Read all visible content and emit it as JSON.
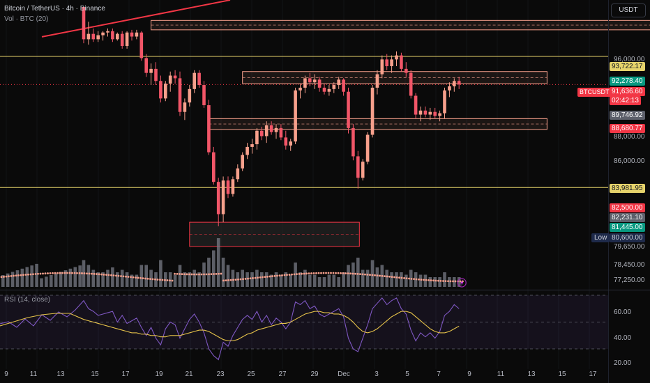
{
  "header": {
    "title": "Bitcoin / TetherUS · 4h · Binance",
    "volume_label": "Vol · BTC (20)",
    "rsi_label": "RSI (14, close)"
  },
  "currency_button": "USDT",
  "symbol_tag": "BTCUSDT",
  "price_axis": [
    "96,000.00",
    "88,000.00",
    "86,000.00",
    "79,650.00",
    "78,450.00",
    "77,250.00"
  ],
  "price_labels": {
    "top_line": "93,722.17",
    "zone_top": "92,278.40",
    "current": "91,636.60",
    "countdown": "02:42:13",
    "gray1": "89,746.92",
    "zone_bottom": "88,680.77",
    "lower_line": "83,981.95",
    "red_zone": "82,500.00",
    "gray2": "82,231.10",
    "green_zone": "81,445.00",
    "low_label": "Low",
    "low_value": "80,600.00"
  },
  "rsi_axis": [
    "60.00",
    "40.00",
    "20.00"
  ],
  "time_axis": [
    "9",
    "11",
    "13",
    "15",
    "17",
    "19",
    "21",
    "23",
    "25",
    "27",
    "29",
    "Dec",
    "3",
    "5",
    "7",
    "9",
    "11",
    "13",
    "15",
    "17"
  ],
  "colors": {
    "up": "#f7a08c",
    "down": "#f25668",
    "hline": "#e6d36b",
    "zone": "#f7a08c",
    "red_zone": "#f23645",
    "volume": "#787b86",
    "vol_ma": "#f7a08c",
    "rsi": "#7e57c2",
    "rsi_ma": "#e6c34a"
  },
  "chart_data": {
    "type": "candlestick",
    "ylim": [
      76800,
      97400
    ],
    "candles": [
      [
        97400,
        97400,
        94700,
        95000
      ],
      [
        95000,
        96300,
        94600,
        95400
      ],
      [
        95400,
        95800,
        94800,
        95000
      ],
      [
        95000,
        95600,
        94800,
        95300
      ],
      [
        95300,
        95600,
        94900,
        95500
      ],
      [
        95500,
        95800,
        95200,
        95600
      ],
      [
        95600,
        95800,
        94800,
        95000
      ],
      [
        95000,
        95500,
        94900,
        95400
      ],
      [
        95400,
        95600,
        94300,
        94500
      ],
      [
        94500,
        95600,
        94300,
        95500
      ],
      [
        95500,
        95700,
        94900,
        95200
      ],
      [
        95200,
        95700,
        95000,
        95500
      ],
      [
        95500,
        95600,
        93400,
        93600
      ],
      [
        93600,
        93900,
        92200,
        92500
      ],
      [
        92500,
        93200,
        91600,
        92800
      ],
      [
        92800,
        93300,
        91600,
        91900
      ],
      [
        91900,
        92300,
        90300,
        90600
      ],
      [
        90600,
        91900,
        90400,
        91700
      ],
      [
        91700,
        92600,
        91100,
        92300
      ],
      [
        92300,
        92700,
        91700,
        92100
      ],
      [
        92100,
        92600,
        89300,
        89600
      ],
      [
        89600,
        90600,
        89000,
        90300
      ],
      [
        90300,
        91600,
        90000,
        91300
      ],
      [
        91300,
        92700,
        91000,
        92500
      ],
      [
        92500,
        92700,
        91400,
        91600
      ],
      [
        91600,
        91900,
        89900,
        90100
      ],
      [
        90100,
        90500,
        86400,
        86600
      ],
      [
        86600,
        87000,
        84200,
        84400
      ],
      [
        84400,
        84700,
        81100,
        82000
      ],
      [
        82000,
        84800,
        81400,
        84500
      ],
      [
        84500,
        84800,
        83200,
        83500
      ],
      [
        83500,
        84800,
        83300,
        84600
      ],
      [
        84600,
        85700,
        84400,
        85400
      ],
      [
        85400,
        86600,
        85200,
        86400
      ],
      [
        86400,
        87300,
        86100,
        87000
      ],
      [
        87000,
        87600,
        86500,
        87200
      ],
      [
        87200,
        88400,
        86800,
        88200
      ],
      [
        88200,
        88500,
        87500,
        87800
      ],
      [
        87800,
        88900,
        87300,
        88600
      ],
      [
        88600,
        88900,
        87900,
        88100
      ],
      [
        88100,
        88700,
        87600,
        88400
      ],
      [
        88400,
        88700,
        87500,
        87700
      ],
      [
        87700,
        88200,
        86800,
        87100
      ],
      [
        87100,
        87600,
        86700,
        87400
      ],
      [
        87400,
        91400,
        87200,
        91200
      ],
      [
        91200,
        91700,
        90600,
        91400
      ],
      [
        91400,
        92300,
        91000,
        92100
      ],
      [
        92100,
        92500,
        91500,
        91800
      ],
      [
        91800,
        92400,
        91300,
        92000
      ],
      [
        92000,
        92200,
        91100,
        91400
      ],
      [
        91400,
        91700,
        90900,
        91100
      ],
      [
        91100,
        91600,
        90800,
        91300
      ],
      [
        91300,
        91800,
        91000,
        91600
      ],
      [
        91600,
        92200,
        91300,
        92000
      ],
      [
        92000,
        92100,
        90800,
        91100
      ],
      [
        91100,
        91400,
        88000,
        88400
      ],
      [
        88400,
        88700,
        86000,
        86300
      ],
      [
        86300,
        86700,
        83900,
        84700
      ],
      [
        84700,
        86100,
        84500,
        85900
      ],
      [
        85900,
        88100,
        85700,
        87900
      ],
      [
        87900,
        91600,
        87700,
        91400
      ],
      [
        91400,
        92700,
        90900,
        92400
      ],
      [
        92400,
        93800,
        92100,
        93500
      ],
      [
        93500,
        93900,
        92700,
        93000
      ],
      [
        93000,
        93800,
        92500,
        93500
      ],
      [
        93500,
        94100,
        93000,
        93800
      ],
      [
        93800,
        94000,
        92600,
        92800
      ],
      [
        92800,
        93300,
        92200,
        92500
      ],
      [
        92500,
        92700,
        90600,
        90800
      ],
      [
        90800,
        91000,
        89100,
        89400
      ],
      [
        89400,
        90000,
        88900,
        89700
      ],
      [
        89700,
        90000,
        89200,
        89400
      ],
      [
        89400,
        89900,
        89000,
        89600
      ],
      [
        89600,
        89900,
        89100,
        89300
      ],
      [
        89300,
        89700,
        88900,
        89500
      ],
      [
        89500,
        91400,
        89100,
        91200
      ],
      [
        91200,
        91800,
        90700,
        91500
      ],
      [
        91500,
        92100,
        91100,
        91900
      ],
      [
        91900,
        92200,
        91300,
        91636.6
      ]
    ],
    "volume_relative": [
      0.55,
      0.45,
      0.35,
      0.3,
      0.3,
      0.35,
      0.4,
      0.3,
      0.35,
      0.3,
      0.25,
      0.25,
      0.45,
      0.45,
      0.35,
      0.3,
      0.55,
      0.3,
      0.3,
      0.25,
      0.45,
      0.3,
      0.3,
      0.35,
      0.3,
      0.5,
      0.6,
      0.75,
      1.0,
      0.6,
      0.45,
      0.35,
      0.3,
      0.35,
      0.3,
      0.3,
      0.35,
      0.3,
      0.3,
      0.25,
      0.3,
      0.25,
      0.3,
      0.25,
      0.5,
      0.3,
      0.35,
      0.25,
      0.25,
      0.2,
      0.2,
      0.25,
      0.25,
      0.2,
      0.3,
      0.45,
      0.5,
      0.6,
      0.35,
      0.35,
      0.55,
      0.4,
      0.45,
      0.35,
      0.3,
      0.3,
      0.3,
      0.25,
      0.35,
      0.3,
      0.25,
      0.25,
      0.2,
      0.2,
      0.2,
      0.3,
      0.2,
      0.2,
      0.2
    ],
    "rsi": [
      66,
      60,
      58,
      55,
      56,
      57,
      58,
      50,
      55,
      49,
      51,
      53,
      46,
      40,
      46,
      38,
      33,
      45,
      50,
      48,
      38,
      45,
      52,
      56,
      50,
      42,
      30,
      25,
      22,
      35,
      32,
      40,
      46,
      52,
      55,
      52,
      58,
      50,
      55,
      48,
      53,
      50,
      45,
      50,
      65,
      63,
      66,
      60,
      62,
      56,
      54,
      56,
      58,
      60,
      54,
      38,
      30,
      28,
      38,
      48,
      60,
      64,
      68,
      63,
      66,
      68,
      60,
      56,
      44,
      36,
      42,
      39,
      42,
      38,
      43,
      55,
      58,
      63,
      60
    ],
    "rsi_ma": [
      52,
      51,
      50,
      49,
      48,
      47,
      46,
      45,
      44,
      43,
      42,
      42,
      41,
      41,
      40,
      40,
      39,
      39,
      40,
      40,
      40,
      41,
      42,
      43,
      44,
      44,
      43,
      41,
      39,
      37,
      36,
      36,
      37,
      39,
      41,
      42,
      44,
      45,
      46,
      47,
      48,
      49,
      49,
      50,
      52,
      54,
      56,
      57,
      58,
      58,
      57,
      57,
      56,
      56,
      55,
      53,
      50,
      46,
      43,
      42,
      43,
      45,
      48,
      51,
      54,
      56,
      58,
      58,
      57,
      54,
      51,
      48,
      45,
      43,
      42,
      42,
      43,
      45,
      47
    ],
    "h_lines": [
      93722.17,
      83981.95
    ],
    "zones": [
      {
        "low": 95700,
        "high": 96400,
        "from": 14,
        "to": 138,
        "style": "zone"
      },
      {
        "low": 91700,
        "high": 92600,
        "from": 33,
        "to": 96,
        "style": "zone"
      },
      {
        "low": 88300,
        "high": 89100,
        "from": 26,
        "to": 96,
        "style": "zone"
      },
      {
        "low": 79600,
        "high": 81400,
        "from": 22,
        "to": 57,
        "style": "red_zone"
      }
    ],
    "trendline": [
      [
        0,
        95800
      ],
      [
        28,
        97400
      ]
    ],
    "rsi_ylim": [
      20,
      70
    ],
    "rsi_levels": [
      70,
      50,
      30
    ],
    "time_ticks": [
      "9",
      "11",
      "13",
      "15",
      "17",
      "19",
      "21",
      "23",
      "25",
      "27",
      "29",
      "Dec",
      "3",
      "5",
      "7",
      "9",
      "11",
      "13",
      "15",
      "17"
    ]
  }
}
